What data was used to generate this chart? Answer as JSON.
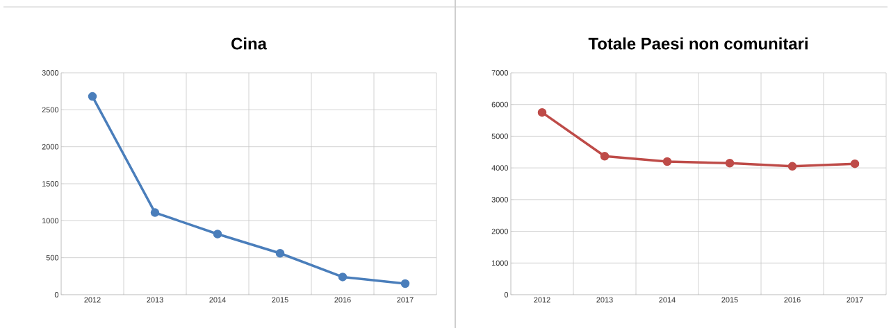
{
  "chart_data": [
    {
      "type": "line",
      "title": "Cina",
      "categories": [
        "2012",
        "2013",
        "2014",
        "2015",
        "2016",
        "2017"
      ],
      "series": [
        {
          "color": "#4a7ebb",
          "values": [
            2680,
            1110,
            820,
            560,
            240,
            150
          ]
        }
      ],
      "ylim": [
        0,
        3000
      ],
      "yticks": [
        0,
        500,
        1000,
        1500,
        2000,
        2500,
        3000
      ],
      "grid": true,
      "marker": "circle",
      "line_style": "solid"
    },
    {
      "type": "line",
      "title": "Totale Paesi non comunitari",
      "categories": [
        "2012",
        "2013",
        "2014",
        "2015",
        "2016",
        "2017"
      ],
      "series": [
        {
          "color": "#be4b48",
          "values": [
            5750,
            4370,
            4200,
            4150,
            4050,
            4130
          ]
        }
      ],
      "ylim": [
        0,
        7000
      ],
      "yticks": [
        0,
        1000,
        2000,
        3000,
        4000,
        5000,
        6000,
        7000
      ],
      "grid": true,
      "marker": "circle",
      "line_style": "solid"
    }
  ]
}
